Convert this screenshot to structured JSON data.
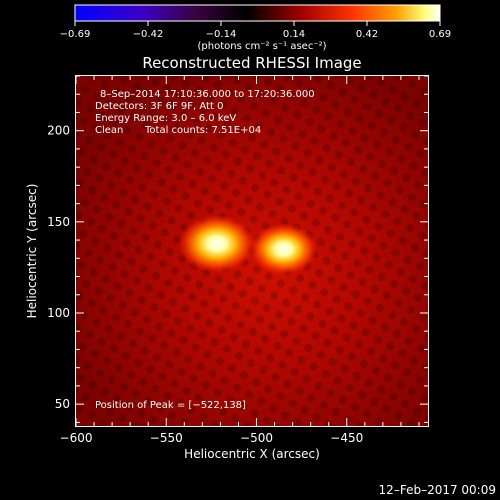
{
  "colorbar": {
    "ticks": [
      "−0.69",
      "−0.42",
      "−0.14",
      "0.14",
      "0.42",
      "0.69"
    ],
    "unit_label": "(photons cm⁻² s⁻¹ asec⁻²)"
  },
  "chart_data": {
    "type": "heatmap",
    "title": "Reconstructed RHESSI Image",
    "xlabel": "Heliocentric X (arcsec)",
    "ylabel": "Heliocentric Y (arcsec)",
    "xlim": [
      -600,
      -405
    ],
    "ylim": [
      38,
      230
    ],
    "xticks": [
      -600,
      -550,
      -500,
      -450
    ],
    "xtick_labels": [
      "−600",
      "−550",
      "−500",
      "−450"
    ],
    "yticks": [
      50,
      100,
      150,
      200
    ],
    "ytick_labels": [
      "50",
      "100",
      "150",
      "200"
    ],
    "color_range": [
      -0.69,
      0.69
    ],
    "colormap": [
      "#0000ff",
      "#4400a0",
      "#000000",
      "#a00000",
      "#ff3300",
      "#ff9900",
      "#ffff66",
      "#ffffff"
    ],
    "sources": [
      {
        "x": -522,
        "y": 138,
        "peak": 0.69
      },
      {
        "x": -485,
        "y": 135,
        "peak": 0.6
      }
    ],
    "annotations": {
      "time_range": "8–Sep–2014 17:10:36.000 to 17:20:36.000",
      "detectors": "Detectors: 3F 6F 9F, Att 0",
      "energy": "Energy Range: 3.0 – 6.0 keV",
      "method": "Clean",
      "counts": "Total counts: 7.51E+04",
      "peak": "Position of Peak = [−522,138]"
    }
  },
  "footer": {
    "timestamp": "12–Feb–2017 00:09"
  }
}
